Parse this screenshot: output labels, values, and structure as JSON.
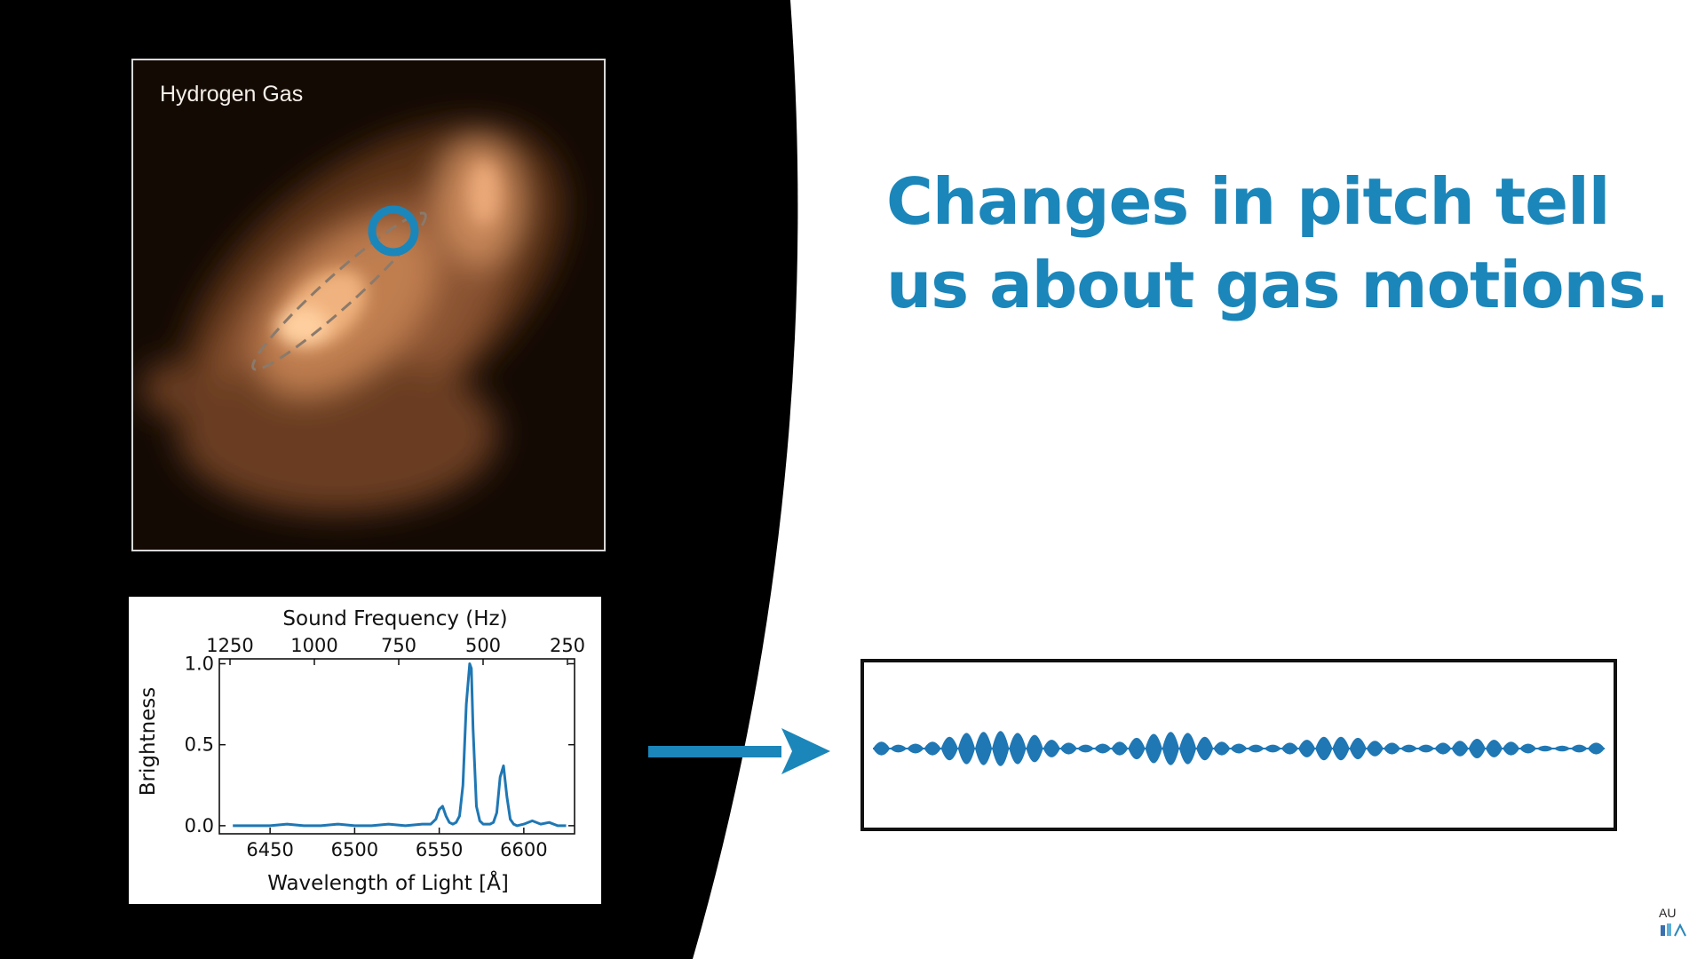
{
  "image_panel": {
    "label": "Hydrogen Gas"
  },
  "headline": {
    "line1": "Changes in pitch tell",
    "line2": "us about gas motions."
  },
  "chart_data": {
    "type": "line",
    "title": "",
    "xlabel": "Wavelength of Light [Å]",
    "ylabel": "Brightness",
    "secondary_xlabel": "Sound Frequency (Hz)",
    "xlim": [
      6420,
      6630
    ],
    "ylim": [
      -0.05,
      1.03
    ],
    "xticks": [
      6450,
      6500,
      6550,
      6600
    ],
    "yticks": [
      0.0,
      0.5,
      1.0
    ],
    "secondary_xtick_labels": [
      "1250",
      "1000",
      "750",
      "500",
      "250"
    ],
    "series": [
      {
        "x": [
          6428,
          6440,
          6450,
          6460,
          6470,
          6480,
          6490,
          6500,
          6510,
          6520,
          6530,
          6540,
          6545,
          6548,
          6550,
          6552,
          6554,
          6556,
          6558,
          6560,
          6562,
          6564,
          6566,
          6568,
          6569,
          6570,
          6572,
          6574,
          6576,
          6578,
          6580,
          6582,
          6584,
          6586,
          6588,
          6590,
          6592,
          6594,
          6596,
          6600,
          6605,
          6610,
          6615,
          6620,
          6625
        ],
        "y": [
          0.0,
          0.0,
          0.0,
          0.01,
          0.0,
          0.0,
          0.01,
          0.0,
          0.0,
          0.01,
          0.0,
          0.01,
          0.01,
          0.04,
          0.1,
          0.12,
          0.06,
          0.02,
          0.01,
          0.02,
          0.06,
          0.25,
          0.75,
          1.0,
          0.97,
          0.6,
          0.12,
          0.03,
          0.01,
          0.01,
          0.01,
          0.02,
          0.08,
          0.3,
          0.37,
          0.18,
          0.04,
          0.01,
          0.0,
          0.01,
          0.03,
          0.01,
          0.02,
          0.0,
          0.0
        ],
        "color": "#1f77b4"
      }
    ]
  },
  "colors": {
    "accent": "#1b86ba",
    "signal": "#1f77b4",
    "gas": "#e8a06a"
  },
  "waveform": {
    "amplitudes": [
      0.35,
      0.2,
      0.25,
      0.35,
      0.6,
      0.8,
      0.85,
      0.9,
      0.8,
      0.7,
      0.45,
      0.3,
      0.2,
      0.25,
      0.35,
      0.55,
      0.75,
      0.85,
      0.8,
      0.6,
      0.35,
      0.25,
      0.2,
      0.2,
      0.3,
      0.45,
      0.6,
      0.6,
      0.55,
      0.4,
      0.3,
      0.2,
      0.2,
      0.3,
      0.4,
      0.5,
      0.45,
      0.35,
      0.25,
      0.15,
      0.15,
      0.2,
      0.3
    ]
  },
  "logo": {
    "text": "AU"
  }
}
